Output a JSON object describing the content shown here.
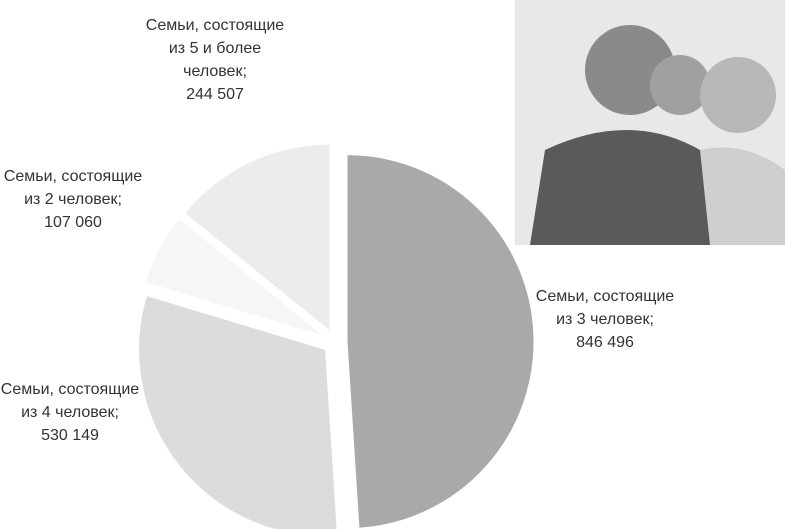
{
  "chart_data": {
    "type": "pie",
    "categories": [
      "Семьи, состоящие из 3 человек;",
      "Семьи, состоящие из 4 человек;",
      "Семьи, состоящие из 2 человек;",
      "Семьи, состоящие из 5 и более человек;"
    ],
    "values": [
      846496,
      530149,
      107060,
      244507
    ],
    "value_labels": [
      "846 496",
      "530 149",
      "107 060",
      "244 507"
    ],
    "colors": [
      "#a9a9a9",
      "#dcdcdc",
      "#f6f6f6",
      "#ececec"
    ]
  }
}
